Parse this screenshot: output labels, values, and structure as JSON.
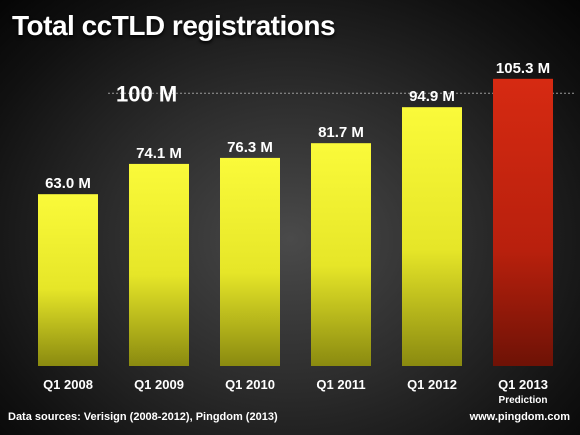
{
  "title": "Total ccTLD registrations",
  "footer": {
    "sources": "Data sources: Verisign (2008-2012), Pingdom (2013)",
    "site": "www.pingdom.com"
  },
  "colors": {
    "actual_bar": "#f0f020",
    "prediction_bar": "#c8230f",
    "background": "#333333"
  },
  "chart_data": {
    "type": "bar",
    "title": "Total ccTLD registrations",
    "xlabel": "",
    "ylabel": "",
    "ylim": [
      0,
      110
    ],
    "categories": [
      "Q1 2008",
      "Q1 2009",
      "Q1 2010",
      "Q1 2011",
      "Q1 2012",
      "Q1 2013"
    ],
    "values": [
      63.0,
      74.1,
      76.3,
      81.7,
      94.9,
      105.3
    ],
    "value_labels": [
      "63.0 M",
      "74.1 M",
      "76.3 M",
      "81.7 M",
      "94.9 M",
      "105.3 M"
    ],
    "category_sublabels": [
      "",
      "",
      "",
      "",
      "",
      "Prediction"
    ],
    "reference_line": {
      "value": 100,
      "label": "100 M"
    },
    "highlight_index": 5,
    "grid": false,
    "legend": "none"
  }
}
